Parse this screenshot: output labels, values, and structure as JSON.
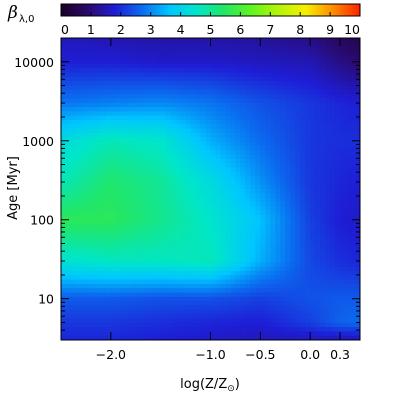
{
  "chart_data": {
    "type": "heatmap",
    "title": "",
    "xlabel_base": "log(Z/Z",
    "xlabel_symbol": "⊙",
    "xlabel_close": ")",
    "ylabel": "Age [Myr]",
    "colorbar": {
      "symbol": "β",
      "subscript": "λ,0",
      "ticks": [
        "0",
        "1",
        "2",
        "3",
        "4",
        "5",
        "6",
        "7",
        "8",
        "9",
        "10"
      ],
      "range": [
        0,
        10
      ],
      "colormap": [
        "#1a0026",
        "#2a0a6e",
        "#1e1ed6",
        "#0a6ef0",
        "#00c6ff",
        "#00e6c8",
        "#22e666",
        "#5ff520",
        "#b4f50a",
        "#f5f000",
        "#ff8c00",
        "#ff2200"
      ]
    },
    "x_axis": {
      "scale": "linear",
      "range": [
        -2.5,
        0.5
      ],
      "ticks": [
        -2.0,
        -1.0,
        -0.5,
        0.0,
        0.3
      ],
      "tick_labels": [
        "−2.0",
        "−1.0",
        "−0.5",
        "0.0",
        "0.3"
      ]
    },
    "y_axis": {
      "scale": "log",
      "range": [
        3,
        20000
      ],
      "ticks": [
        10,
        100,
        1000,
        10000
      ],
      "tick_labels": [
        "10",
        "100",
        "1000",
        "10000"
      ]
    },
    "grid": false,
    "x_samples": [
      -2.5,
      -2.0,
      -1.5,
      -1.0,
      -0.5,
      0.0,
      0.3,
      0.5
    ],
    "y_samples": [
      3,
      5,
      10,
      30,
      100,
      300,
      1000,
      3000,
      10000,
      20000
    ],
    "values": [
      [
        1.9,
        1.9,
        1.8,
        1.7,
        1.6,
        1.6,
        1.5,
        1.5
      ],
      [
        2.1,
        2.1,
        2.0,
        1.9,
        1.8,
        2.2,
        2.6,
        2.7
      ],
      [
        2.5,
        2.5,
        2.4,
        2.4,
        2.2,
        2.4,
        2.5,
        2.5
      ],
      [
        4.4,
        4.6,
        4.6,
        4.7,
        3.4,
        2.3,
        2.0,
        1.9
      ],
      [
        5.6,
        5.6,
        5.1,
        4.5,
        3.6,
        2.2,
        1.8,
        1.7
      ],
      [
        4.7,
        5.4,
        5.0,
        4.2,
        3.1,
        2.1,
        1.9,
        1.8
      ],
      [
        4.2,
        4.7,
        4.5,
        3.4,
        2.7,
        2.1,
        2.0,
        2.0
      ],
      [
        2.8,
        2.9,
        3.0,
        2.8,
        2.4,
        2.1,
        1.9,
        1.8
      ],
      [
        1.8,
        1.8,
        1.7,
        1.7,
        1.6,
        1.5,
        1.1,
        0.9
      ],
      [
        1.6,
        1.5,
        1.4,
        1.4,
        1.3,
        1.1,
        0.7,
        0.5
      ]
    ]
  }
}
